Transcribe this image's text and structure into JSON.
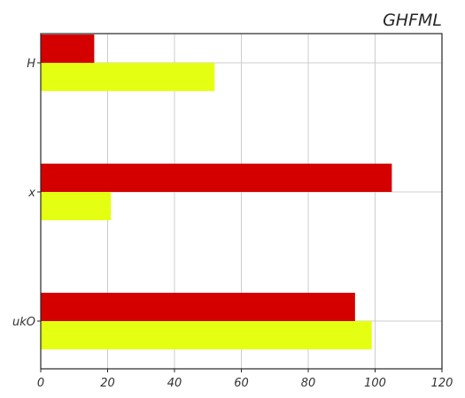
{
  "chart_data": {
    "type": "bar",
    "orientation": "horizontal",
    "title": "GHFML",
    "xlabel": "",
    "ylabel": "",
    "categories": [
      "H",
      "x",
      "ukO"
    ],
    "series": [
      {
        "color": "#d40000",
        "values": [
          16,
          105,
          94
        ]
      },
      {
        "color": "#e5ff12",
        "values": [
          52,
          21,
          99
        ]
      }
    ],
    "xlim": [
      0,
      120
    ],
    "xticks": [
      0,
      20,
      40,
      60,
      80,
      100,
      120
    ],
    "grid": true,
    "legend": "none"
  }
}
